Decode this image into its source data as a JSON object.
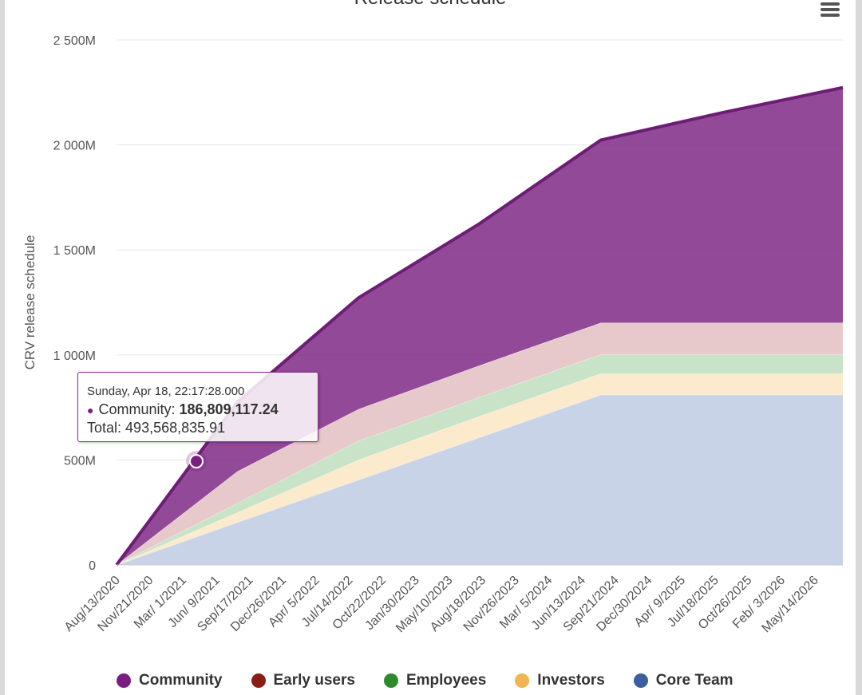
{
  "chart_data": {
    "type": "area",
    "stacked": true,
    "title": "Release schedule",
    "ylabel": "CRV release schedule",
    "xlabel": "",
    "ylim": [
      0,
      2500
    ],
    "y_unit": "M",
    "y_ticks": [
      {
        "value": 0,
        "label": "0"
      },
      {
        "value": 500,
        "label": "500M"
      },
      {
        "value": 1000,
        "label": "1 000M"
      },
      {
        "value": 1500,
        "label": "1 500M"
      },
      {
        "value": 2000,
        "label": "2 000M"
      },
      {
        "value": 2500,
        "label": "2 500M"
      }
    ],
    "x_tick_labels": [
      "Aug/13/2020",
      "Nov/21/2020",
      "Mar/ 1/2021",
      "Jun/ 9/2021",
      "Sep/17/2021",
      "Dec/26/2021",
      "Apr/ 5/2022",
      "Jul/14/2022",
      "Oct/22/2022",
      "Jan/30/2023",
      "May/10/2023",
      "Aug/18/2023",
      "Nov/26/2023",
      "Mar/ 5/2024",
      "Jun/13/2024",
      "Sep/21/2024",
      "Dec/30/2024",
      "Apr/ 9/2025",
      "Jul/18/2025",
      "Oct/26/2025",
      "Feb/ 3/2026",
      "May/14/2026"
    ],
    "x": [
      "2020-08-13",
      "2021-08-13",
      "2022-08-13",
      "2023-08-13",
      "2024-08-13",
      "2025-08-13",
      "2026-08-13"
    ],
    "grid": true,
    "legend_position": "bottom",
    "series": [
      {
        "name": "Core Team",
        "color": "#c9d3e8",
        "values": [
          0,
          203,
          405,
          607,
          810,
          810,
          810
        ]
      },
      {
        "name": "Investors",
        "color": "#fbeacb",
        "values": [
          0,
          47,
          95,
          101,
          101,
          101,
          101
        ]
      },
      {
        "name": "Employees",
        "color": "#c9e3c9",
        "values": [
          0,
          45,
          91,
          91,
          91,
          91,
          91
        ]
      },
      {
        "name": "Early users",
        "color": "#e8c9cb",
        "values": [
          0,
          151,
          151,
          151,
          151,
          151,
          151
        ]
      },
      {
        "name": "Community",
        "color": "#7f2a86",
        "values": [
          0,
          330,
          530,
          675,
          870,
          1000,
          1120
        ]
      }
    ],
    "tooltip": {
      "date": "Sunday, Apr 18, 22:17:28.000",
      "series_label": "Community:",
      "series_value": "186,809,117.24",
      "total_label": "Total:",
      "total_value": "493,568,835.91",
      "color": "#7a1f7f",
      "point_y": 493.57
    }
  },
  "legend": [
    {
      "label": "Community",
      "color": "#7b1c80"
    },
    {
      "label": "Early users",
      "color": "#8a1e16"
    },
    {
      "label": "Employees",
      "color": "#2e8a2e"
    },
    {
      "label": "Investors",
      "color": "#f2b450"
    },
    {
      "label": "Core Team",
      "color": "#3b5fa0"
    }
  ],
  "menu_icon": "hamburger-menu-icon"
}
